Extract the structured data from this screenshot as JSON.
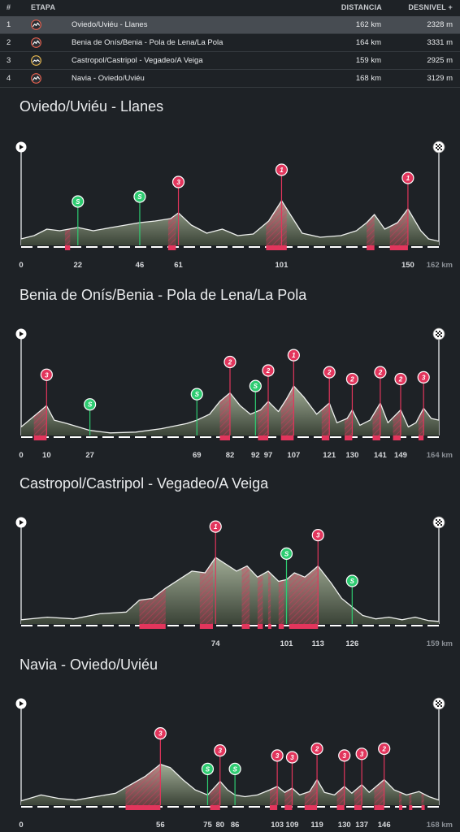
{
  "table": {
    "headers": {
      "num": "#",
      "stage": "ETAPA",
      "distance": "DISTANCIA",
      "climb": "DESNIVEL +"
    },
    "rows": [
      {
        "num": "1",
        "name": "Oviedo/Uviéu - Llanes",
        "distance": "162 km",
        "climb": "2328 m",
        "icon": "medium-profile-icon",
        "iconColor": "#e8614f",
        "selected": true
      },
      {
        "num": "2",
        "name": "Benia de Onís/Benia - Pola de Lena/La Pola",
        "distance": "164 km",
        "climb": "3331 m",
        "icon": "medium-profile-icon",
        "iconColor": "#e8614f",
        "selected": false
      },
      {
        "num": "3",
        "name": "Castropol/Castripol - Vegadeo/A Veiga",
        "distance": "159 km",
        "climb": "2925 m",
        "icon": "hilly-profile-icon",
        "iconColor": "#e8b84f",
        "selected": false
      },
      {
        "num": "4",
        "name": "Navia - Oviedo/Uviéu",
        "distance": "168 km",
        "climb": "3129 m",
        "icon": "medium-profile-icon",
        "iconColor": "#e8614f",
        "selected": false
      }
    ]
  },
  "colors": {
    "climb": "#e2355c",
    "sprint": "#2ecc71",
    "terrain": "#8a9a7e",
    "background": "#1e2226"
  },
  "profiles": [
    {
      "title": "Oviedo/Uviéu - Llanes",
      "total_km": 162,
      "end_label": "162 km",
      "km_ticks": [
        "0",
        "22",
        "46",
        "61",
        "101",
        "150"
      ],
      "tick_km": [
        0,
        22,
        46,
        61,
        101,
        150
      ],
      "markers": [
        {
          "type": "sprint",
          "label": "S",
          "km": 22
        },
        {
          "type": "sprint",
          "label": "S",
          "km": 46
        },
        {
          "type": "climb",
          "label": "3",
          "km": 61
        },
        {
          "type": "climb",
          "label": "1",
          "km": 101
        },
        {
          "type": "climb",
          "label": "1",
          "km": 150
        }
      ],
      "climb_segments": [
        [
          17,
          19
        ],
        [
          57,
          60
        ],
        [
          95,
          103
        ],
        [
          134,
          137
        ],
        [
          143,
          150
        ]
      ],
      "elevation": [
        [
          0,
          0.08
        ],
        [
          5,
          0.12
        ],
        [
          10,
          0.2
        ],
        [
          15,
          0.18
        ],
        [
          22,
          0.22
        ],
        [
          28,
          0.18
        ],
        [
          35,
          0.22
        ],
        [
          46,
          0.28
        ],
        [
          52,
          0.3
        ],
        [
          58,
          0.33
        ],
        [
          61,
          0.4
        ],
        [
          66,
          0.25
        ],
        [
          72,
          0.15
        ],
        [
          78,
          0.2
        ],
        [
          84,
          0.12
        ],
        [
          90,
          0.14
        ],
        [
          96,
          0.3
        ],
        [
          101,
          0.55
        ],
        [
          105,
          0.35
        ],
        [
          109,
          0.15
        ],
        [
          116,
          0.1
        ],
        [
          124,
          0.12
        ],
        [
          130,
          0.18
        ],
        [
          134,
          0.28
        ],
        [
          137,
          0.38
        ],
        [
          141,
          0.2
        ],
        [
          146,
          0.28
        ],
        [
          150,
          0.45
        ],
        [
          155,
          0.18
        ],
        [
          158,
          0.08
        ],
        [
          162,
          0.05
        ]
      ]
    },
    {
      "title": "Benia de Onís/Benia - Pola de Lena/La Pola",
      "total_km": 164,
      "end_label": "164 km",
      "km_ticks": [
        "0",
        "10",
        "27",
        "69",
        "82",
        "92",
        "97",
        "107",
        "121",
        "130",
        "141",
        "149"
      ],
      "tick_km": [
        0,
        10,
        27,
        69,
        82,
        92,
        97,
        107,
        121,
        130,
        141,
        149
      ],
      "markers": [
        {
          "type": "climb",
          "label": "3",
          "km": 10
        },
        {
          "type": "sprint",
          "label": "S",
          "km": 27
        },
        {
          "type": "sprint",
          "label": "S",
          "km": 69
        },
        {
          "type": "climb",
          "label": "2",
          "km": 82
        },
        {
          "type": "sprint",
          "label": "S",
          "km": 92
        },
        {
          "type": "climb",
          "label": "2",
          "km": 97
        },
        {
          "type": "climb",
          "label": "1",
          "km": 107
        },
        {
          "type": "climb",
          "label": "2",
          "km": 121
        },
        {
          "type": "climb",
          "label": "2",
          "km": 130
        },
        {
          "type": "climb",
          "label": "2",
          "km": 141
        },
        {
          "type": "climb",
          "label": "2",
          "km": 149
        },
        {
          "type": "climb",
          "label": "3",
          "km": 158
        }
      ],
      "climb_segments": [
        [
          5,
          10
        ],
        [
          78,
          82
        ],
        [
          93,
          97
        ],
        [
          102,
          107
        ],
        [
          118,
          121
        ],
        [
          127,
          130
        ],
        [
          138,
          141
        ],
        [
          146,
          149
        ],
        [
          156,
          158
        ]
      ],
      "elevation": [
        [
          0,
          0.1
        ],
        [
          4,
          0.2
        ],
        [
          8,
          0.3
        ],
        [
          10,
          0.35
        ],
        [
          13,
          0.18
        ],
        [
          18,
          0.14
        ],
        [
          27,
          0.06
        ],
        [
          35,
          0.03
        ],
        [
          45,
          0.04
        ],
        [
          55,
          0.08
        ],
        [
          65,
          0.14
        ],
        [
          69,
          0.18
        ],
        [
          74,
          0.25
        ],
        [
          78,
          0.4
        ],
        [
          82,
          0.5
        ],
        [
          86,
          0.35
        ],
        [
          90,
          0.25
        ],
        [
          94,
          0.3
        ],
        [
          97,
          0.4
        ],
        [
          101,
          0.28
        ],
        [
          104,
          0.42
        ],
        [
          107,
          0.58
        ],
        [
          111,
          0.45
        ],
        [
          116,
          0.25
        ],
        [
          121,
          0.38
        ],
        [
          124,
          0.15
        ],
        [
          128,
          0.2
        ],
        [
          130,
          0.3
        ],
        [
          133,
          0.12
        ],
        [
          137,
          0.18
        ],
        [
          141,
          0.38
        ],
        [
          144,
          0.15
        ],
        [
          149,
          0.3
        ],
        [
          152,
          0.1
        ],
        [
          155,
          0.15
        ],
        [
          158,
          0.32
        ],
        [
          161,
          0.2
        ],
        [
          164,
          0.18
        ]
      ]
    },
    {
      "title": "Castropol/Castripol - Vegadeo/A Veiga",
      "total_km": 159,
      "end_label": "159 km",
      "km_ticks": [
        "74",
        "101",
        "113",
        "126"
      ],
      "tick_km": [
        74,
        101,
        113,
        126
      ],
      "markers": [
        {
          "type": "climb",
          "label": "1",
          "km": 74
        },
        {
          "type": "sprint",
          "label": "S",
          "km": 101
        },
        {
          "type": "climb",
          "label": "3",
          "km": 113
        },
        {
          "type": "sprint",
          "label": "S",
          "km": 126
        }
      ],
      "climb_segments": [
        [
          45,
          55
        ],
        [
          68,
          73
        ],
        [
          84,
          87
        ],
        [
          90,
          92
        ],
        [
          94,
          95
        ],
        [
          98,
          100
        ],
        [
          102,
          113
        ]
      ],
      "elevation": [
        [
          0,
          0.05
        ],
        [
          10,
          0.08
        ],
        [
          20,
          0.06
        ],
        [
          30,
          0.12
        ],
        [
          40,
          0.14
        ],
        [
          45,
          0.28
        ],
        [
          50,
          0.3
        ],
        [
          55,
          0.42
        ],
        [
          60,
          0.52
        ],
        [
          65,
          0.62
        ],
        [
          70,
          0.6
        ],
        [
          74,
          0.78
        ],
        [
          78,
          0.7
        ],
        [
          82,
          0.62
        ],
        [
          86,
          0.68
        ],
        [
          90,
          0.55
        ],
        [
          94,
          0.62
        ],
        [
          98,
          0.5
        ],
        [
          101,
          0.52
        ],
        [
          104,
          0.6
        ],
        [
          108,
          0.55
        ],
        [
          113,
          0.68
        ],
        [
          118,
          0.48
        ],
        [
          122,
          0.3
        ],
        [
          126,
          0.2
        ],
        [
          130,
          0.1
        ],
        [
          135,
          0.06
        ],
        [
          140,
          0.08
        ],
        [
          145,
          0.05
        ],
        [
          150,
          0.08
        ],
        [
          155,
          0.04
        ],
        [
          159,
          0.03
        ]
      ]
    },
    {
      "title": "Navia - Oviedo/Uviéu",
      "total_km": 168,
      "end_label": "168 km",
      "km_ticks": [
        "0",
        "56",
        "75",
        "80",
        "86",
        "103",
        "109",
        "119",
        "130",
        "137",
        "146"
      ],
      "tick_km": [
        0,
        56,
        75,
        80,
        86,
        103,
        109,
        119,
        130,
        137,
        146
      ],
      "markers": [
        {
          "type": "climb",
          "label": "3",
          "km": 56
        },
        {
          "type": "sprint",
          "label": "S",
          "km": 75
        },
        {
          "type": "climb",
          "label": "3",
          "km": 80
        },
        {
          "type": "sprint",
          "label": "S",
          "km": 86
        },
        {
          "type": "climb",
          "label": "3",
          "km": 103
        },
        {
          "type": "climb",
          "label": "3",
          "km": 109
        },
        {
          "type": "climb",
          "label": "2",
          "km": 119
        },
        {
          "type": "climb",
          "label": "3",
          "km": 130
        },
        {
          "type": "climb",
          "label": "3",
          "km": 137
        },
        {
          "type": "climb",
          "label": "2",
          "km": 146
        }
      ],
      "climb_segments": [
        [
          42,
          56
        ],
        [
          76,
          80
        ],
        [
          100,
          103
        ],
        [
          106,
          109
        ],
        [
          114,
          119
        ],
        [
          127,
          130
        ],
        [
          134,
          137
        ],
        [
          142,
          146
        ],
        [
          152,
          153
        ],
        [
          156,
          157
        ],
        [
          161,
          162
        ]
      ],
      "elevation": [
        [
          0,
          0.05
        ],
        [
          8,
          0.12
        ],
        [
          15,
          0.08
        ],
        [
          22,
          0.06
        ],
        [
          30,
          0.1
        ],
        [
          38,
          0.14
        ],
        [
          44,
          0.24
        ],
        [
          50,
          0.34
        ],
        [
          56,
          0.48
        ],
        [
          60,
          0.44
        ],
        [
          65,
          0.3
        ],
        [
          70,
          0.18
        ],
        [
          75,
          0.12
        ],
        [
          80,
          0.28
        ],
        [
          83,
          0.18
        ],
        [
          86,
          0.12
        ],
        [
          90,
          0.1
        ],
        [
          95,
          0.12
        ],
        [
          100,
          0.18
        ],
        [
          103,
          0.22
        ],
        [
          106,
          0.15
        ],
        [
          109,
          0.2
        ],
        [
          112,
          0.12
        ],
        [
          116,
          0.16
        ],
        [
          119,
          0.3
        ],
        [
          122,
          0.15
        ],
        [
          126,
          0.12
        ],
        [
          130,
          0.22
        ],
        [
          133,
          0.14
        ],
        [
          137,
          0.24
        ],
        [
          140,
          0.15
        ],
        [
          146,
          0.3
        ],
        [
          150,
          0.18
        ],
        [
          155,
          0.12
        ],
        [
          160,
          0.16
        ],
        [
          164,
          0.1
        ],
        [
          168,
          0.06
        ]
      ]
    }
  ]
}
